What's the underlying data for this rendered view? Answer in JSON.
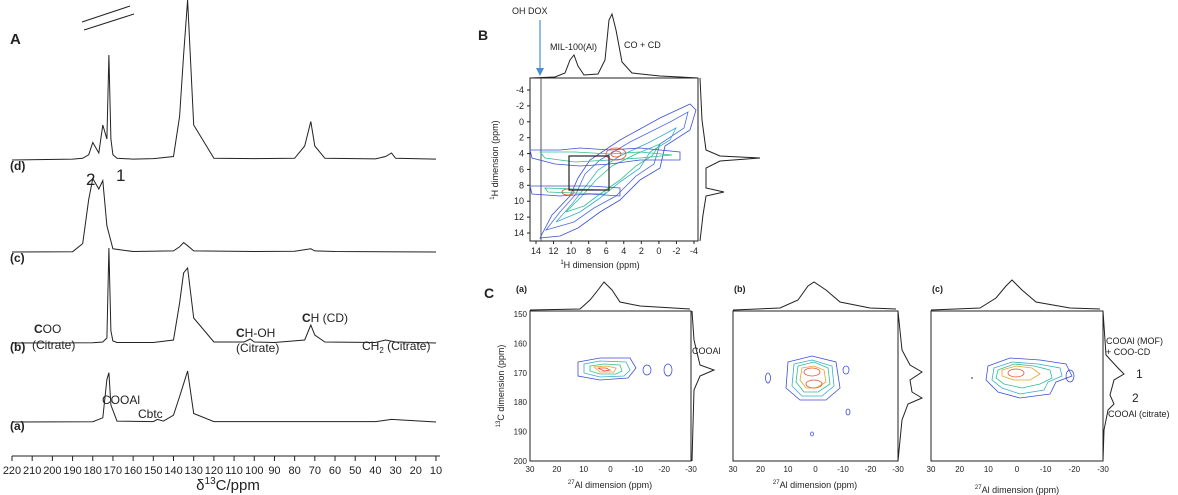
{
  "panels": {
    "A": {
      "letter": "A",
      "x_axis": {
        "label": "δ13C/ppm",
        "ticks": [
          220,
          210,
          200,
          190,
          180,
          170,
          160,
          150,
          140,
          130,
          120,
          110,
          100,
          90,
          80,
          70,
          60,
          50,
          40,
          30,
          20,
          10
        ]
      },
      "spectra_labels": [
        "(d)",
        "(c)",
        "(b)",
        "(a)"
      ],
      "annotations": {
        "peak2": "2",
        "peak1": "1",
        "coo": "COO",
        "coo_citrate": "(Citrate)",
        "choh": "CH-OH",
        "choh_citrate": "(Citrate)",
        "ch_cd": "CH (CD)",
        "ch2_citrate": "CH2 (Citrate)",
        "cooal": "COOAl",
        "cbtc": "Cbtc"
      }
    },
    "B": {
      "letter": "B",
      "oh_dox": "OH DOX",
      "mil": "MIL-100(Al)",
      "co_cd": "CO + CD",
      "x_label": "1H dimension (ppm)",
      "y_label": "1H dimension (ppm)",
      "x_ticks": [
        "14",
        "12",
        "10",
        "8",
        "6",
        "4",
        "2",
        "0",
        "-2",
        "-4"
      ],
      "y_ticks": [
        "-4",
        "-2",
        "0",
        "2",
        "4",
        "6",
        "8",
        "10",
        "12",
        "14"
      ]
    },
    "C": {
      "letter": "C",
      "sub_labels": [
        "(a)",
        "(b)",
        "(c)"
      ],
      "x_label": "27Al dimension (ppm)",
      "y_label": "13C dimension (ppm)",
      "x_ticks": [
        "30",
        "20",
        "10",
        "0",
        "-10",
        "-20",
        "-30"
      ],
      "y_ticks": [
        "150",
        "160",
        "170",
        "180",
        "190",
        "200"
      ],
      "cooal_label": "COOAl",
      "right_label_line1": "COOAl (MOF)",
      "right_label_line2": "+ COO-CD",
      "right_peak1": "1",
      "right_peak2": "2",
      "right_label_line3": "COOAl (citrate)"
    }
  },
  "colors": {
    "ink": "#222222",
    "contour_outer": "#3d4fd6",
    "contour_mid": "#2fbf8f",
    "contour_inner": "#e64b2a",
    "arrow": "#4a8fd6"
  },
  "chart_data": [
    {
      "type": "line",
      "title": "",
      "xlabel": "δ13C/ppm",
      "xlim": [
        220,
        8
      ],
      "series": [
        {
          "values_x": [
            220,
            190,
            185,
            182,
            180,
            177,
            175,
            173,
            172,
            171,
            170,
            168,
            160,
            150,
            148,
            140,
            137,
            135,
            133,
            130,
            120,
            100,
            80,
            75,
            72,
            70,
            65,
            40,
            35,
            32,
            30,
            10
          ],
          "values_y": [
            0,
            0.5,
            1,
            3,
            10,
            4,
            20,
            12,
            60,
            12,
            3,
            1,
            0.5,
            0.8,
            1,
            2,
            25,
            60,
            100,
            20,
            1,
            0.8,
            1,
            8,
            22,
            8,
            1,
            0.6,
            2,
            4,
            1,
            0.5
          ]
        },
        {
          "values_x": [
            220,
            190,
            185,
            182,
            180,
            177,
            175,
            173,
            170,
            160,
            140,
            137,
            135,
            133,
            130,
            100,
            80,
            72,
            70,
            60,
            10
          ],
          "values_y": [
            0,
            0.3,
            8,
            50,
            70,
            60,
            68,
            25,
            3,
            0.5,
            1,
            5,
            9,
            6,
            1,
            0.5,
            0.8,
            3,
            1,
            0.5,
            0
          ]
        },
        {
          "values_x": [
            220,
            180,
            175,
            173,
            172,
            171,
            170,
            168,
            150,
            140,
            137,
            135,
            133,
            130,
            120,
            105,
            102,
            100,
            90,
            75,
            72,
            70,
            65,
            40,
            35,
            30,
            10
          ],
          "values_y": [
            0,
            0.3,
            1,
            5,
            95,
            12,
            2,
            0.5,
            0.5,
            3,
            40,
            70,
            75,
            25,
            1,
            1,
            4,
            1,
            0.5,
            3,
            18,
            8,
            1,
            0.5,
            3,
            1,
            0
          ]
        },
        {
          "values_x": [
            220,
            180,
            175,
            173,
            172,
            171,
            168,
            150,
            148,
            145,
            140,
            137,
            135,
            133,
            130,
            120,
            100,
            40,
            35,
            32,
            10
          ],
          "values_y": [
            0,
            0.3,
            5,
            50,
            58,
            20,
            1,
            0.5,
            3,
            1,
            8,
            30,
            45,
            60,
            10,
            0.5,
            0.5,
            0.5,
            2,
            3,
            0
          ]
        }
      ]
    }
  ]
}
